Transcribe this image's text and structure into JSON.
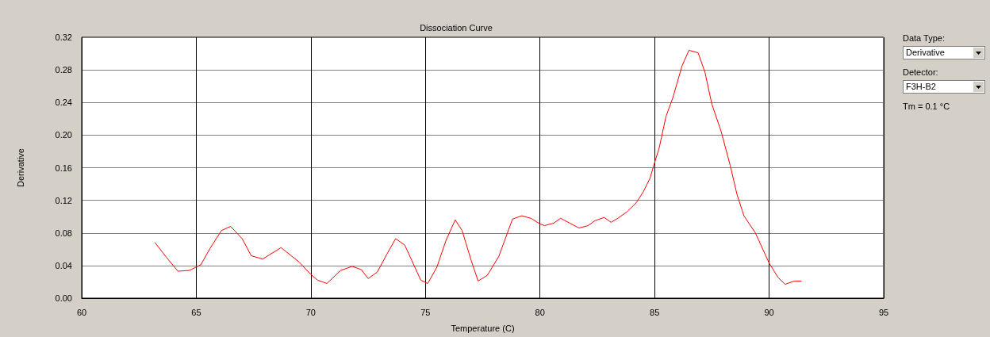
{
  "chart_data": {
    "type": "line",
    "title": "Dissociation Curve",
    "xlabel": "Temperature (C)",
    "ylabel": "Derivative",
    "annotations": [
      "Data Type:",
      "Derivative",
      "Detector:",
      "F3H-B2",
      "Tm = 0.1 °C"
    ],
    "xlim": [
      60,
      95
    ],
    "xticks": [
      60,
      65,
      70,
      75,
      80,
      85,
      90,
      95
    ],
    "ylim": [
      0,
      0.32
    ],
    "yticks": [
      {
        "value": 0,
        "label": "0.00"
      },
      0.04,
      0.08,
      0.12,
      0.16,
      {
        "value": 0.2,
        "label": "0.20"
      },
      0.24,
      0.28,
      0.32
    ],
    "grid": true,
    "marker": "none",
    "line_style": "solid",
    "series": [
      {
        "color": "#ff0000",
        "x": [
          63.2,
          63.7,
          64.2,
          64.7,
          65.2,
          65.6,
          66.1,
          66.5,
          67.0,
          67.4,
          67.9,
          68.7,
          69.5,
          70.0,
          70.3,
          70.7,
          71.3,
          71.8,
          72.2,
          72.5,
          72.9,
          73.3,
          73.7,
          74.1,
          74.8,
          75.1,
          75.5,
          75.9,
          76.3,
          76.6,
          77.0,
          77.3,
          77.7,
          78.2,
          78.8,
          79.2,
          79.6,
          80.0,
          80.2,
          80.6,
          80.9,
          81.3,
          81.7,
          82.1,
          82.4,
          82.8,
          83.1,
          83.4,
          83.8,
          84.2,
          84.5,
          84.8,
          85.0,
          85.2,
          85.5,
          85.8,
          86.2,
          86.5,
          86.9,
          87.2,
          87.5,
          87.9,
          88.3,
          88.6,
          88.9,
          89.4,
          90.0,
          90.4,
          90.7,
          91.1,
          91.4
        ],
        "values": [
          0.068,
          0.05,
          0.033,
          0.034,
          0.041,
          0.061,
          0.083,
          0.088,
          0.073,
          0.052,
          0.048,
          0.062,
          0.044,
          0.029,
          0.022,
          0.018,
          0.034,
          0.039,
          0.035,
          0.024,
          0.032,
          0.053,
          0.073,
          0.065,
          0.022,
          0.018,
          0.038,
          0.071,
          0.096,
          0.083,
          0.046,
          0.021,
          0.028,
          0.051,
          0.097,
          0.101,
          0.098,
          0.091,
          0.089,
          0.092,
          0.098,
          0.092,
          0.086,
          0.089,
          0.095,
          0.099,
          0.093,
          0.098,
          0.106,
          0.117,
          0.13,
          0.147,
          0.166,
          0.184,
          0.223,
          0.246,
          0.285,
          0.304,
          0.301,
          0.277,
          0.238,
          0.205,
          0.163,
          0.127,
          0.101,
          0.08,
          0.043,
          0.025,
          0.017,
          0.021,
          0.021
        ]
      }
    ]
  }
}
